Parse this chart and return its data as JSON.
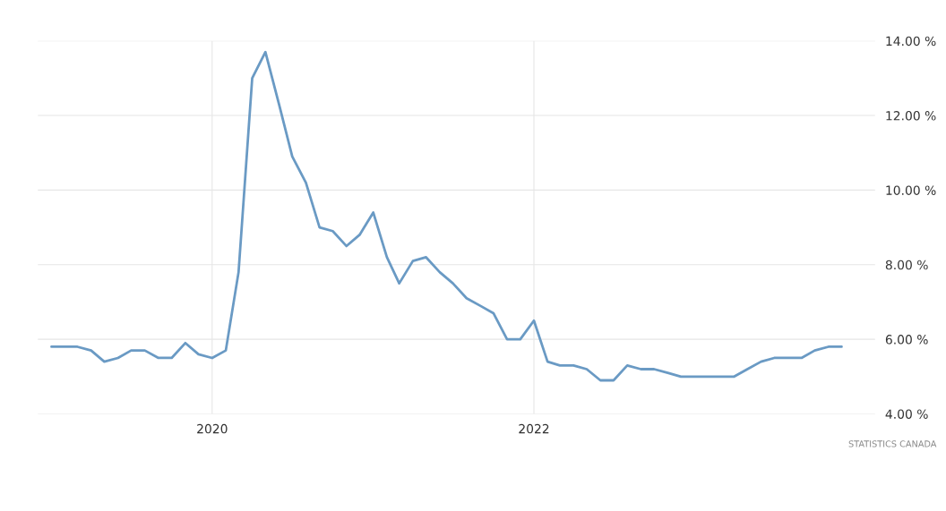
{
  "chart_data": {
    "type": "line",
    "x": [
      "2019-01",
      "2019-02",
      "2019-03",
      "2019-04",
      "2019-05",
      "2019-06",
      "2019-07",
      "2019-08",
      "2019-09",
      "2019-10",
      "2019-11",
      "2019-12",
      "2020-01",
      "2020-02",
      "2020-03",
      "2020-04",
      "2020-05",
      "2020-06",
      "2020-07",
      "2020-08",
      "2020-09",
      "2020-10",
      "2020-11",
      "2020-12",
      "2021-01",
      "2021-02",
      "2021-03",
      "2021-04",
      "2021-05",
      "2021-06",
      "2021-07",
      "2021-08",
      "2021-09",
      "2021-10",
      "2021-11",
      "2021-12",
      "2022-01",
      "2022-02",
      "2022-03",
      "2022-04",
      "2022-05",
      "2022-06",
      "2022-07",
      "2022-08",
      "2022-09",
      "2022-10",
      "2022-11",
      "2022-12",
      "2023-01",
      "2023-02",
      "2023-03",
      "2023-04",
      "2023-05",
      "2023-06",
      "2023-07",
      "2023-08",
      "2023-09",
      "2023-10",
      "2023-11",
      "2023-12"
    ],
    "series": [
      {
        "color": "#6a9ac4",
        "values": [
          5.8,
          5.8,
          5.8,
          5.7,
          5.4,
          5.5,
          5.7,
          5.7,
          5.5,
          5.5,
          5.9,
          5.6,
          5.5,
          5.7,
          7.8,
          13.0,
          13.7,
          12.3,
          10.9,
          10.2,
          9.0,
          8.9,
          8.5,
          8.8,
          9.4,
          8.2,
          7.5,
          8.1,
          8.2,
          7.8,
          7.5,
          7.1,
          6.9,
          6.7,
          6.0,
          6.0,
          6.5,
          5.4,
          5.3,
          5.3,
          5.2,
          4.9,
          4.9,
          5.3,
          5.2,
          5.2,
          5.1,
          5.0,
          5.0,
          5.0,
          5.0,
          5.0,
          5.2,
          5.4,
          5.5,
          5.5,
          5.5,
          5.7,
          5.8,
          5.8
        ]
      }
    ],
    "xlim": [
      "2018-12-01",
      "2024-02-15"
    ],
    "xticks": [
      {
        "value": "2020-01",
        "label": "2020"
      },
      {
        "value": "2022-01",
        "label": "2022"
      }
    ],
    "ylim": [
      4,
      14
    ],
    "yticks": [
      {
        "value": 4,
        "label": "4.00 %"
      },
      {
        "value": 6,
        "label": "6.00 %"
      },
      {
        "value": 8,
        "label": "8.00 %"
      },
      {
        "value": 10,
        "label": "10.00 %"
      },
      {
        "value": 12,
        "label": "12.00 %"
      },
      {
        "value": 14,
        "label": "14.00 %"
      }
    ],
    "grid": true,
    "line_style": "solid",
    "marker": "none",
    "annotations": [
      "STATISTICS CANADA"
    ]
  }
}
